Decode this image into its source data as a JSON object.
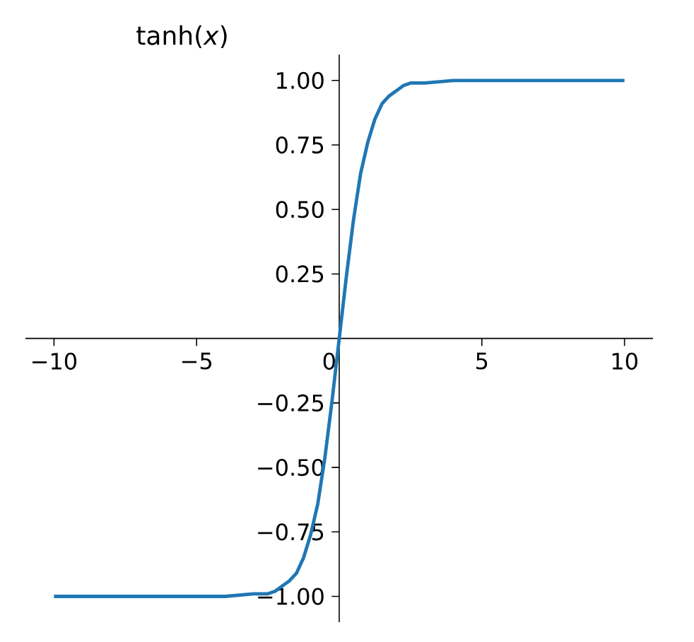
{
  "chart_data": {
    "type": "line",
    "ylabel": "tanh(*x*)",
    "x": [
      -10,
      -6,
      -4,
      -3,
      -2.5,
      -2.25,
      -2,
      -1.75,
      -1.5,
      -1.25,
      -1,
      -0.75,
      -0.5,
      -0.25,
      0,
      0.25,
      0.5,
      0.75,
      1,
      1.25,
      1.5,
      1.75,
      2,
      2.25,
      2.5,
      3,
      4,
      6,
      10
    ],
    "series": [
      {
        "color": "#1f77b4",
        "values": [
          -1.0,
          -1.0,
          -1.0,
          -0.99,
          -0.99,
          -0.98,
          -0.96,
          -0.94,
          -0.91,
          -0.85,
          -0.76,
          -0.64,
          -0.46,
          -0.24,
          0,
          0.24,
          0.46,
          0.64,
          0.76,
          0.85,
          0.91,
          0.94,
          0.96,
          0.98,
          0.99,
          0.99,
          1.0,
          1.0,
          1.0
        ]
      }
    ],
    "xlim": [
      -11,
      11
    ],
    "ylim": [
      -1.1,
      1.1
    ],
    "xticks": [
      {
        "value": -10,
        "label": "−10"
      },
      {
        "value": -5,
        "label": "−5"
      },
      0,
      5,
      10
    ],
    "yticks": [
      {
        "value": -1,
        "label": "−1.00"
      },
      {
        "value": -0.75,
        "label": "−0.75"
      },
      {
        "value": -0.5,
        "label": "−0.50"
      },
      {
        "value": -0.25,
        "label": "−0.25"
      },
      {
        "value": 0.25,
        "label": "0.25"
      },
      {
        "value": 0.5,
        "label": "0.50"
      },
      {
        "value": 0.75,
        "label": "0.75"
      },
      {
        "value": 1,
        "label": "1.00"
      }
    ],
    "grid": false,
    "line_style": "solid",
    "marker": "none"
  }
}
